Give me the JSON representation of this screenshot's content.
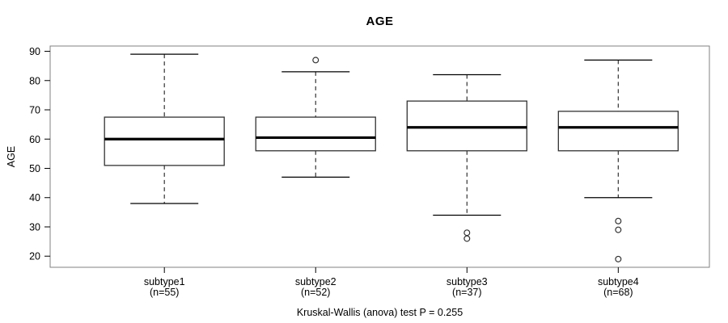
{
  "chart_data": {
    "type": "boxplot",
    "title": "AGE",
    "ylabel": "AGE",
    "xlabel": "",
    "caption": "Kruskal-Wallis (anova) test P = 0.255",
    "yticks": [
      20,
      30,
      40,
      50,
      60,
      70,
      80,
      90
    ],
    "ylim": [
      20,
      90
    ],
    "grid": false,
    "legend": null,
    "groups": [
      {
        "label": "subtype1",
        "sublabel": "(n=55)",
        "n": 55,
        "whisker_low": 38,
        "q1": 51,
        "median": 60,
        "q3": 67.5,
        "whisker_high": 89,
        "outliers": []
      },
      {
        "label": "subtype2",
        "sublabel": "(n=52)",
        "n": 52,
        "whisker_low": 47,
        "q1": 56,
        "median": 60.5,
        "q3": 67.5,
        "whisker_high": 83,
        "outliers": [
          87
        ]
      },
      {
        "label": "subtype3",
        "sublabel": "(n=37)",
        "n": 37,
        "whisker_low": 34,
        "q1": 56,
        "median": 64,
        "q3": 73,
        "whisker_high": 82,
        "outliers": [
          28,
          26
        ]
      },
      {
        "label": "subtype4",
        "sublabel": "(n=68)",
        "n": 68,
        "whisker_low": 40,
        "q1": 56,
        "median": 64,
        "q3": 69.5,
        "whisker_high": 87,
        "outliers": [
          32,
          29,
          19
        ]
      }
    ]
  },
  "colors": {
    "background": "#ffffff",
    "frame": "#808080",
    "box_stroke": "#333333",
    "whisker": "#333333",
    "median": "#000000",
    "text": "#000000"
  }
}
